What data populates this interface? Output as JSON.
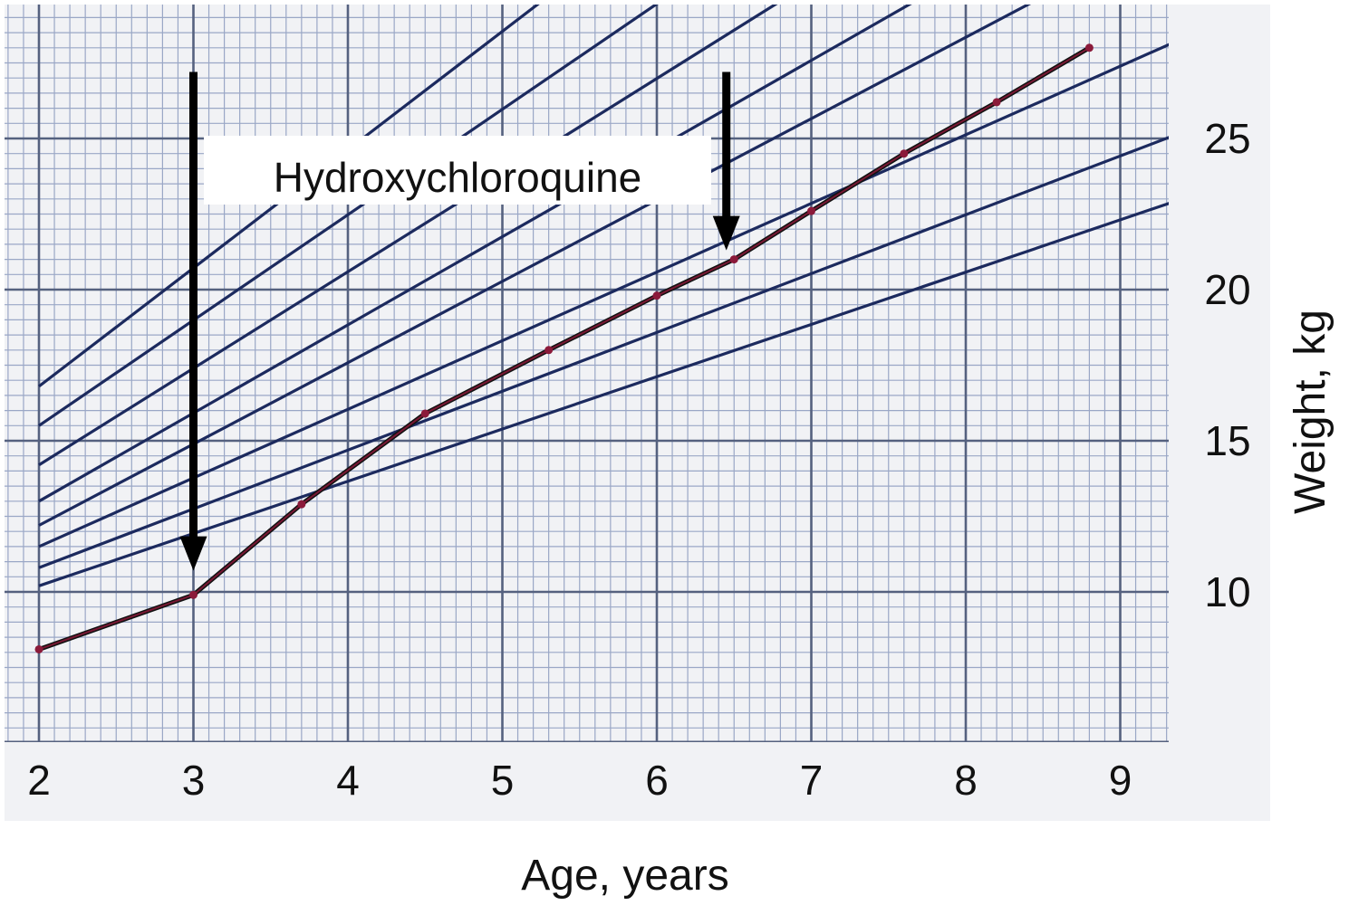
{
  "chart_data": {
    "type": "line",
    "title": "",
    "xlabel": "Age, years",
    "ylabel": "Weight, kg",
    "xlim": [
      2,
      9
    ],
    "ylim": [
      5,
      30
    ],
    "x_ticks": [
      2,
      3,
      4,
      5,
      6,
      7,
      8,
      9
    ],
    "y_ticks": [
      10,
      15,
      20,
      25
    ],
    "y_axis_side": "right",
    "grid": true,
    "reference_curves": [
      {
        "x": [
          2,
          9.4
        ],
        "y": [
          10.2,
          23.0
        ]
      },
      {
        "x": [
          2,
          9.4
        ],
        "y": [
          10.8,
          25.2
        ]
      },
      {
        "x": [
          2,
          9.4
        ],
        "y": [
          11.5,
          28.3
        ]
      },
      {
        "x": [
          2,
          8.8
        ],
        "y": [
          12.2,
          30.5
        ]
      },
      {
        "x": [
          2,
          8.0
        ],
        "y": [
          13.0,
          30.5
        ]
      },
      {
        "x": [
          2,
          7.1
        ],
        "y": [
          14.2,
          30.5
        ]
      },
      {
        "x": [
          2,
          6.3
        ],
        "y": [
          15.5,
          30.5
        ]
      },
      {
        "x": [
          2,
          5.5
        ],
        "y": [
          16.8,
          30.5
        ]
      }
    ],
    "series": [
      {
        "x": [
          2.0,
          3.0,
          3.7,
          4.5,
          5.3,
          6.0,
          6.5,
          7.0,
          7.6,
          8.2,
          8.8
        ],
        "y": [
          8.1,
          9.9,
          12.9,
          15.9,
          18.0,
          19.8,
          21.0,
          22.6,
          24.5,
          26.2,
          28.0
        ],
        "color": "#8b1a3a"
      }
    ],
    "annotations": [
      {
        "text": "Hydroxychloroquine",
        "arrows": [
          {
            "x": 3.0,
            "y_from": 27.2,
            "y_to": 10.7
          },
          {
            "x": 6.45,
            "y_from": 27.2,
            "y_to": 21.3
          }
        ]
      }
    ]
  }
}
